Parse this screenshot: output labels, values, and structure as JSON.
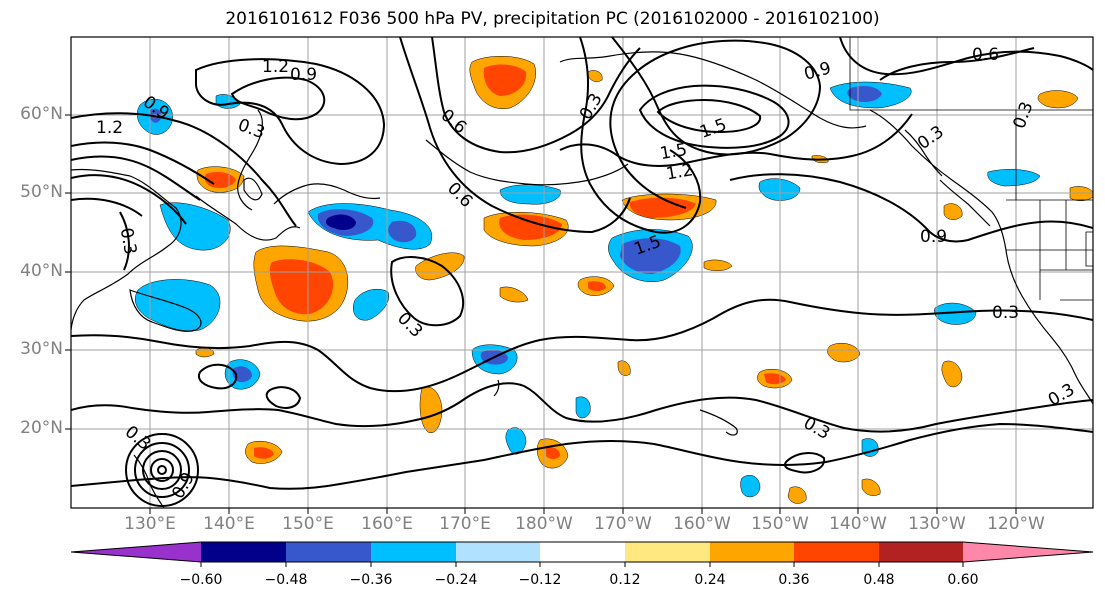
{
  "title": "2016101612 F036 500 hPa PV, precipitation PC (2016102000 - 2016102100)",
  "lat_labels": [
    "60°N",
    "50°N",
    "40°N",
    "30°N",
    "20°N"
  ],
  "lon_labels": [
    "130°E",
    "140°E",
    "150°E",
    "160°E",
    "170°E",
    "180°W",
    "170°W",
    "160°W",
    "150°W",
    "140°W",
    "130°W",
    "120°W"
  ],
  "colorbar": {
    "labels": [
      "−0.60",
      "−0.48",
      "−0.36",
      "−0.24",
      "−0.12",
      "0.12",
      "0.24",
      "0.36",
      "0.48",
      "0.60"
    ],
    "colors": [
      "#9932cc",
      "#00008b",
      "#3658cc",
      "#00bfff",
      "#b0e2ff",
      "#ffffff",
      "#ffe87f",
      "#ffa500",
      "#ff4500",
      "#b22222",
      "#ff88aa"
    ]
  },
  "pv_contour_labels": [
    "1.2",
    "0.9",
    "0.3",
    "0.6",
    "0.6",
    "0.3",
    "0.9",
    "0.6",
    "1.2",
    "0.9",
    "1.5",
    "0.3",
    "1.5",
    "1.2",
    "1.5",
    "0.3",
    "0.9",
    "0.3",
    "0.3",
    "0.3",
    "0.3",
    "0.9",
    "0.3",
    "0.3"
  ],
  "map_data": {
    "lat_range": [
      10,
      70
    ],
    "lon_range_east": [
      120,
      250
    ],
    "gridlines": true,
    "contour_field": "500 hPa PV",
    "shaded_field": "precipitation PC"
  }
}
